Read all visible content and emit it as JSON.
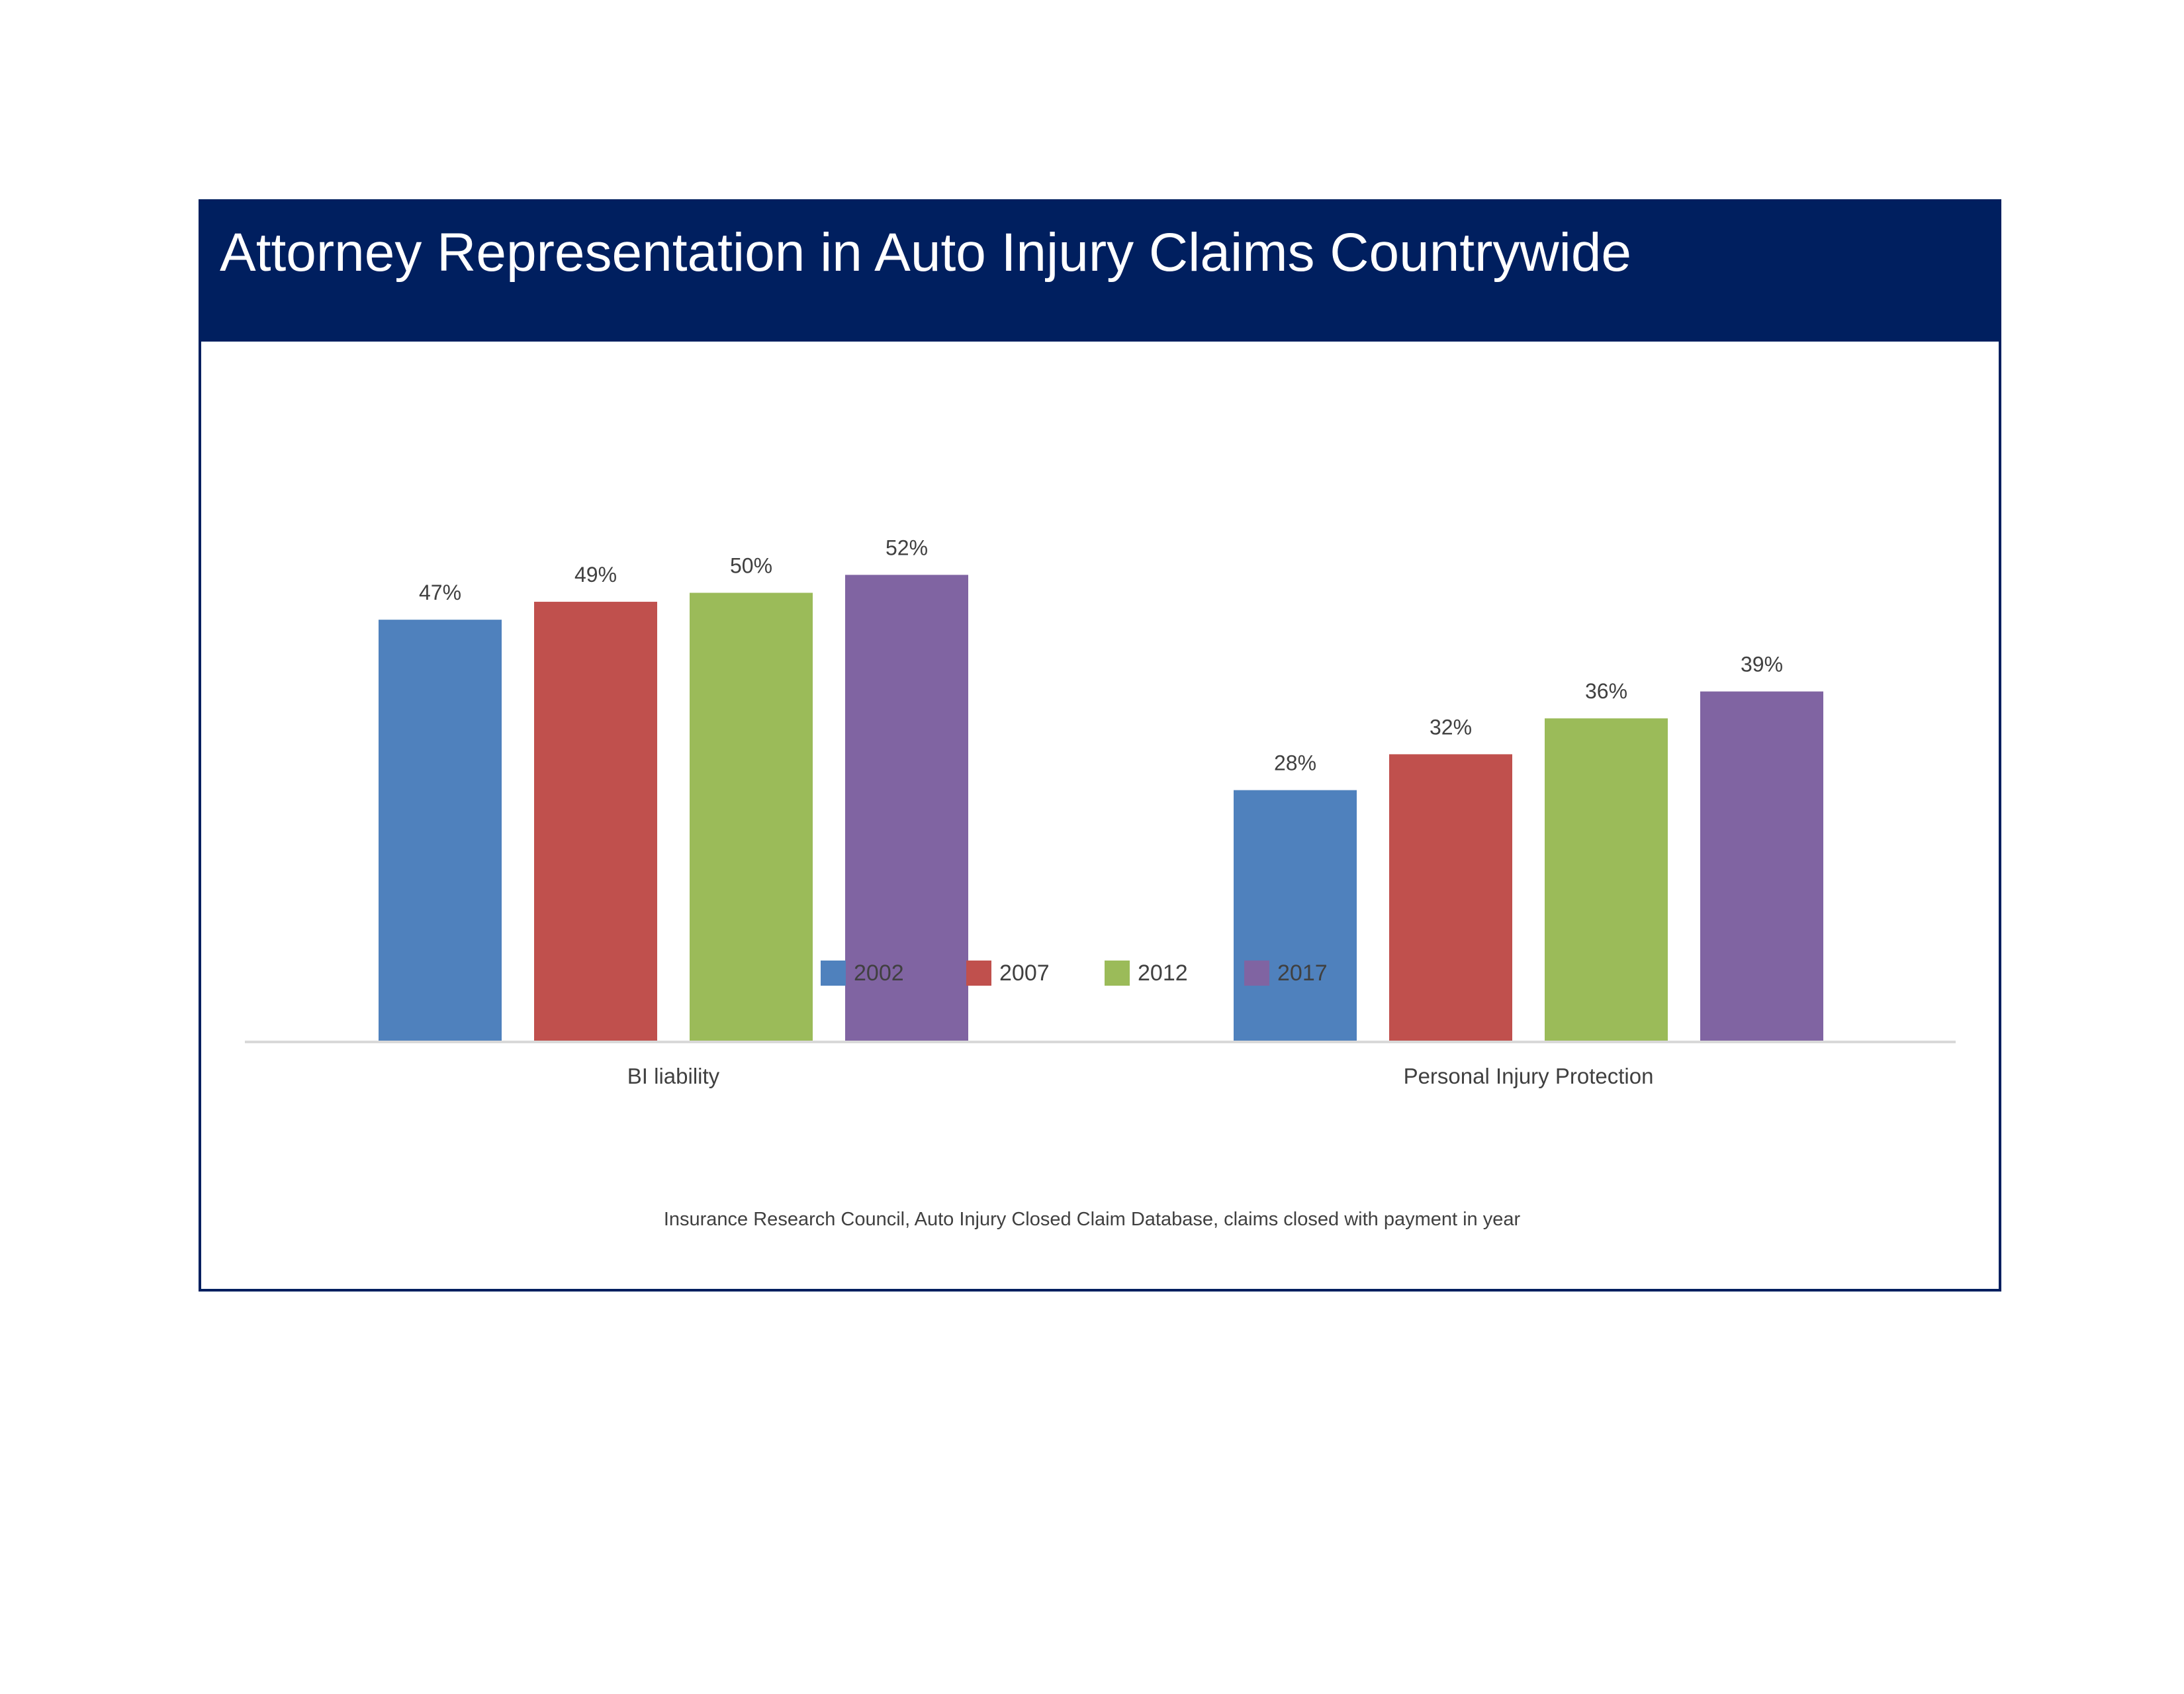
{
  "chart_data": {
    "type": "bar",
    "title": "Attorney Representation in Auto Injury Claims Countrywide",
    "categories": [
      "BI liability",
      "Personal Injury Protection"
    ],
    "series": [
      {
        "name": "2002",
        "color": "#4f81bd",
        "values": [
          47,
          28
        ],
        "labels": [
          "47%",
          "28%"
        ]
      },
      {
        "name": "2007",
        "color": "#c0504d",
        "values": [
          49,
          32
        ],
        "labels": [
          "49%",
          "32%"
        ]
      },
      {
        "name": "2012",
        "color": "#9bbb59",
        "values": [
          50,
          36
        ],
        "labels": [
          "50%",
          "36%"
        ]
      },
      {
        "name": "2017",
        "color": "#8064a2",
        "values": [
          52,
          39
        ],
        "labels": [
          "52%",
          "39%"
        ]
      }
    ],
    "ylim": [
      0,
      100
    ],
    "xlabel": "",
    "ylabel": "",
    "grid": false,
    "legend": "bottom",
    "source": "Insurance Research Council, Auto Injury Closed Claim Database, claims closed with payment in year"
  },
  "colors": {
    "title_bar": "#001f5f",
    "axis_line": "#d9d9d9",
    "text": "#404040"
  }
}
